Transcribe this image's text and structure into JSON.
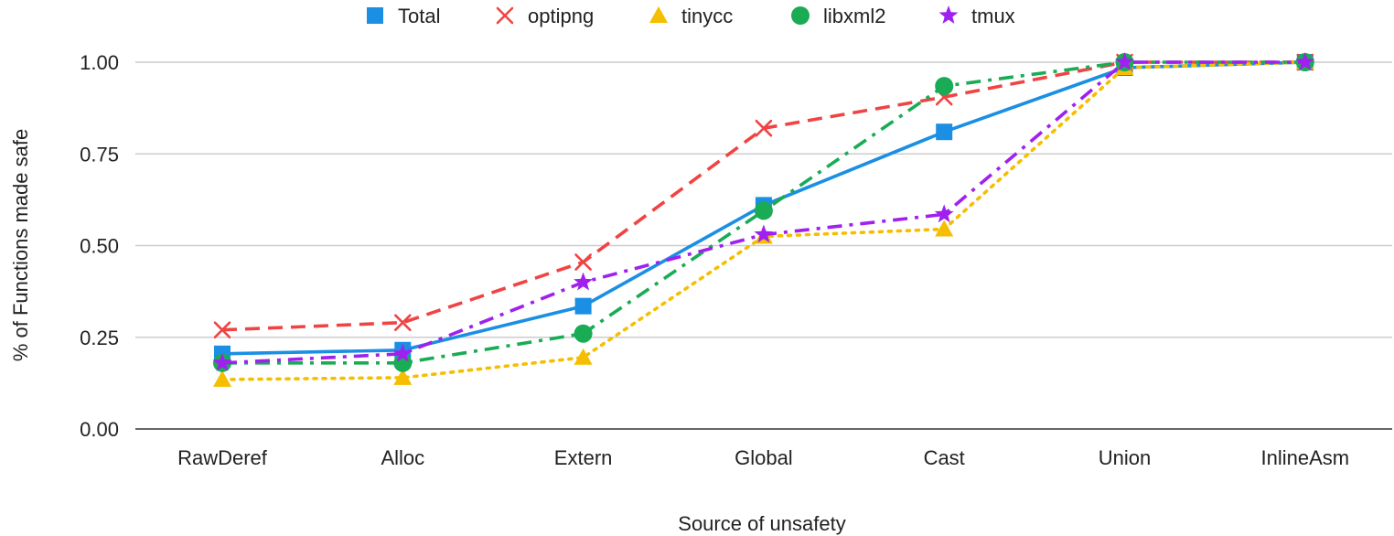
{
  "chart_data": {
    "type": "line",
    "categories": [
      "RawDeref",
      "Alloc",
      "Extern",
      "Global",
      "Cast",
      "Union",
      "InlineAsm"
    ],
    "xlabel": "Source of unsafety",
    "ylabel": "% of Functions made safe",
    "ylim": [
      0,
      1
    ],
    "yticks": [
      "0.00",
      "0.25",
      "0.50",
      "0.75",
      "1.00"
    ],
    "ytick_values": [
      0,
      0.25,
      0.5,
      0.75,
      1.0
    ],
    "grid": true,
    "legend_position": "top",
    "series": [
      {
        "name": "Total",
        "color": "#1a8fe3",
        "marker": "square",
        "line": "solid",
        "values": [
          0.205,
          0.215,
          0.335,
          0.61,
          0.81,
          0.985,
          1.0
        ]
      },
      {
        "name": "optipng",
        "color": "#f04444",
        "marker": "x",
        "line": "dashed",
        "values": [
          0.27,
          0.29,
          0.455,
          0.82,
          0.905,
          1.0,
          1.0
        ]
      },
      {
        "name": "tinycc",
        "color": "#f6be00",
        "marker": "triangle",
        "line": "dotted",
        "values": [
          0.135,
          0.14,
          0.195,
          0.525,
          0.545,
          0.985,
          1.0
        ]
      },
      {
        "name": "libxml2",
        "color": "#1aab55",
        "marker": "circle",
        "line": "dashdot",
        "values": [
          0.18,
          0.18,
          0.26,
          0.595,
          0.935,
          1.0,
          1.0
        ]
      },
      {
        "name": "tmux",
        "color": "#a020f0",
        "marker": "star",
        "line": "dashdot",
        "values": [
          0.18,
          0.205,
          0.4,
          0.53,
          0.585,
          1.0,
          1.0
        ]
      }
    ]
  }
}
